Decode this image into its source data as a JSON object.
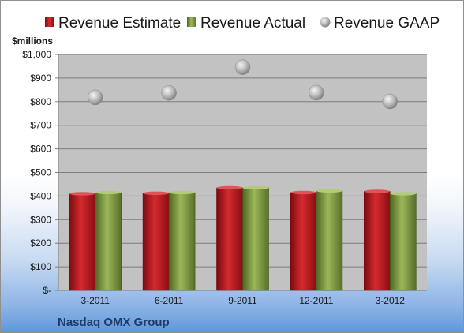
{
  "chart_data": {
    "type": "bar",
    "categories": [
      "3-2011",
      "6-2011",
      "9-2011",
      "12-2011",
      "3-2012"
    ],
    "series": [
      {
        "name": "Revenue Estimate",
        "kind": "bar",
        "color": "#c0181f",
        "values": [
          410,
          412,
          435,
          415,
          420
        ]
      },
      {
        "name": "Revenue Actual",
        "kind": "bar",
        "color": "#7f9a3a",
        "values": [
          415,
          415,
          435,
          422,
          410
        ]
      },
      {
        "name": "Revenue GAAP",
        "kind": "scatter",
        "color": "#a6a6a6",
        "values": [
          818,
          837,
          946,
          838,
          801
        ]
      }
    ],
    "ylabel": "$millions",
    "ylim": [
      0,
      1000
    ],
    "yticks": [
      0,
      100,
      200,
      300,
      400,
      500,
      600,
      700,
      800,
      900,
      1000
    ],
    "ytick_labels": [
      "$-",
      "$100",
      "$200",
      "$300",
      "$400",
      "$500",
      "$600",
      "$700",
      "$800",
      "$900",
      "$1,000"
    ],
    "grid": true,
    "legend": "top",
    "plot_background": "#c2c2c2"
  },
  "footer": {
    "company": "Nasdaq OMX Group"
  }
}
